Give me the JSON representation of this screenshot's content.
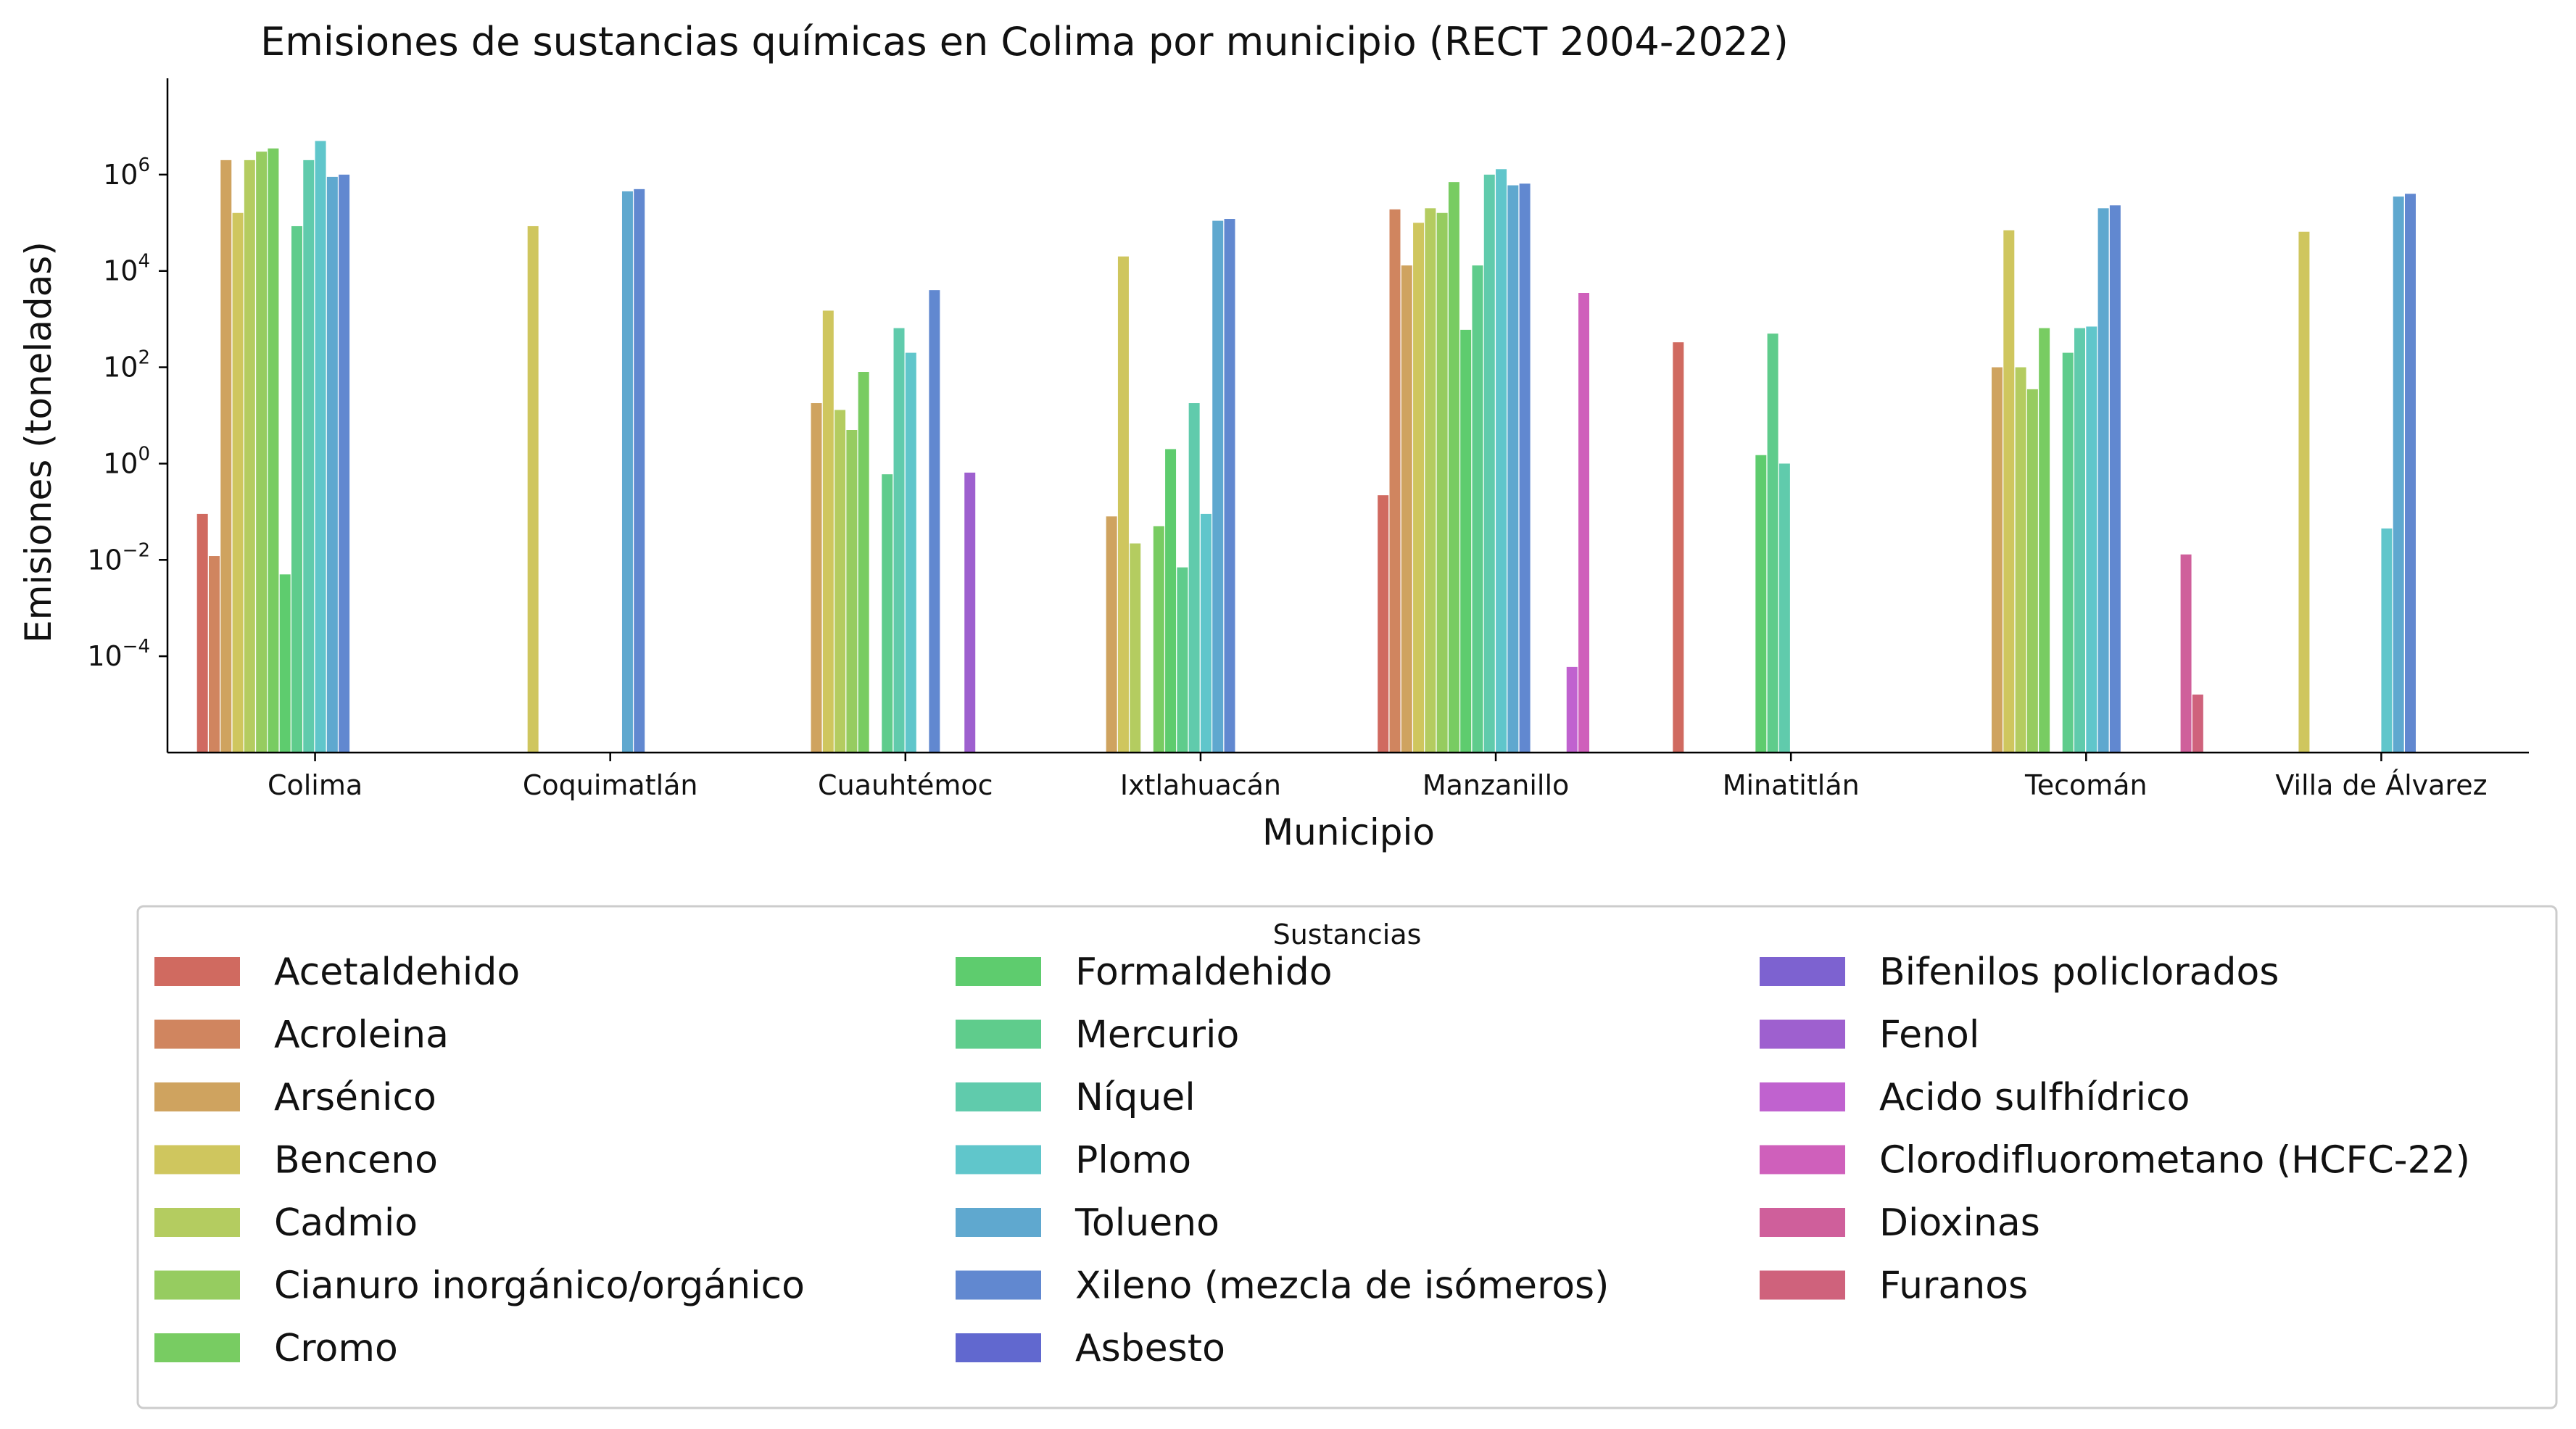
{
  "chart_data": {
    "type": "bar",
    "title": "Emisiones de sustancias químicas en Colima por municipio (RECT 2004-2022)",
    "xlabel": "Municipio",
    "ylabel": "Emisiones (toneladas)",
    "yscale": "log",
    "ylim": [
      1e-06,
      100000000.0
    ],
    "yticks": [
      0.0001,
      0.01,
      1,
      100,
      10000,
      1000000
    ],
    "ytick_labels": [
      {
        "base": "10",
        "exp": "−4"
      },
      {
        "base": "10",
        "exp": "−2"
      },
      {
        "base": "10",
        "exp": "0"
      },
      {
        "base": "10",
        "exp": "2"
      },
      {
        "base": "10",
        "exp": "4"
      },
      {
        "base": "10",
        "exp": "6"
      }
    ],
    "grid": false,
    "legend_title": "Sustancias",
    "legend_position": "bottom",
    "categories": [
      "Colima",
      "Coquimatlán",
      "Cuauhtémoc",
      "Ixtlahuacán",
      "Manzanillo",
      "Minatitlán",
      "Tecomán",
      "Villa de Álvarez"
    ],
    "series": [
      {
        "name": "Acetaldehido",
        "color": "#d06a60",
        "values": [
          0.09,
          null,
          null,
          null,
          0.22,
          330,
          null,
          null
        ]
      },
      {
        "name": "Acroleina",
        "color": "#d0855f",
        "values": [
          0.012,
          null,
          null,
          null,
          190000,
          null,
          null,
          null
        ]
      },
      {
        "name": "Arsénico",
        "color": "#cfa35f",
        "values": [
          2000000,
          null,
          18,
          0.08,
          13000,
          null,
          100,
          null
        ]
      },
      {
        "name": "Benceno",
        "color": "#cfc65e",
        "values": [
          160000,
          85000,
          1500,
          20000,
          100000,
          null,
          70000,
          65000
        ]
      },
      {
        "name": "Cadmio",
        "color": "#b4cc60",
        "values": [
          2000000,
          null,
          13,
          0.022,
          200000,
          null,
          100,
          null
        ]
      },
      {
        "name": "Cianuro inorgánico/orgánico",
        "color": "#96cc60",
        "values": [
          3000000,
          null,
          5,
          null,
          160000,
          null,
          35,
          null
        ]
      },
      {
        "name": "Cromo",
        "color": "#78cc62",
        "values": [
          3500000,
          null,
          80,
          0.05,
          700000,
          null,
          650,
          null
        ]
      },
      {
        "name": "Formaldehido",
        "color": "#5ecc6e",
        "values": [
          0.005,
          null,
          null,
          2,
          600,
          1.5,
          null,
          null
        ]
      },
      {
        "name": "Mercurio",
        "color": "#5fcc8c",
        "values": [
          85000,
          null,
          0.6,
          0.007,
          13000,
          500,
          200,
          null
        ]
      },
      {
        "name": "Níquel",
        "color": "#60cbac",
        "values": [
          2000000,
          null,
          650,
          18,
          1000000,
          1,
          650,
          null
        ]
      },
      {
        "name": "Plomo",
        "color": "#60c6cb",
        "values": [
          5000000,
          null,
          200,
          0.09,
          1300000,
          null,
          700,
          0.045
        ]
      },
      {
        "name": "Tolueno",
        "color": "#5fa8cf",
        "values": [
          900000,
          450000,
          null,
          110000,
          600000,
          null,
          200000,
          350000
        ]
      },
      {
        "name": "Xileno (mezcla de isómeros)",
        "color": "#6188d0",
        "values": [
          1000000,
          500000,
          4000,
          120000,
          650000,
          null,
          230000,
          400000
        ]
      },
      {
        "name": "Asbesto",
        "color": "#6168cf",
        "values": [
          null,
          null,
          null,
          null,
          null,
          null,
          null,
          null
        ]
      },
      {
        "name": "Bifenilos policlorados",
        "color": "#7d62d0",
        "values": [
          null,
          null,
          null,
          null,
          null,
          null,
          null,
          null
        ]
      },
      {
        "name": "Fenol",
        "color": "#9e60cf",
        "values": [
          null,
          null,
          0.65,
          null,
          null,
          null,
          null,
          null
        ]
      },
      {
        "name": "Acido sulfhídrico",
        "color": "#c062cf",
        "values": [
          null,
          null,
          null,
          null,
          6e-05,
          null,
          null,
          null
        ]
      },
      {
        "name": "Clorodifluorometano (HCFC-22)",
        "color": "#cf60bb",
        "values": [
          null,
          null,
          null,
          null,
          3500,
          null,
          null,
          null
        ]
      },
      {
        "name": "Dioxinas",
        "color": "#cf5f9b",
        "values": [
          null,
          null,
          null,
          null,
          null,
          null,
          0.013,
          null
        ]
      },
      {
        "name": "Furanos",
        "color": "#cf627c",
        "values": [
          null,
          null,
          null,
          null,
          null,
          null,
          1.6e-05,
          null
        ]
      }
    ]
  }
}
